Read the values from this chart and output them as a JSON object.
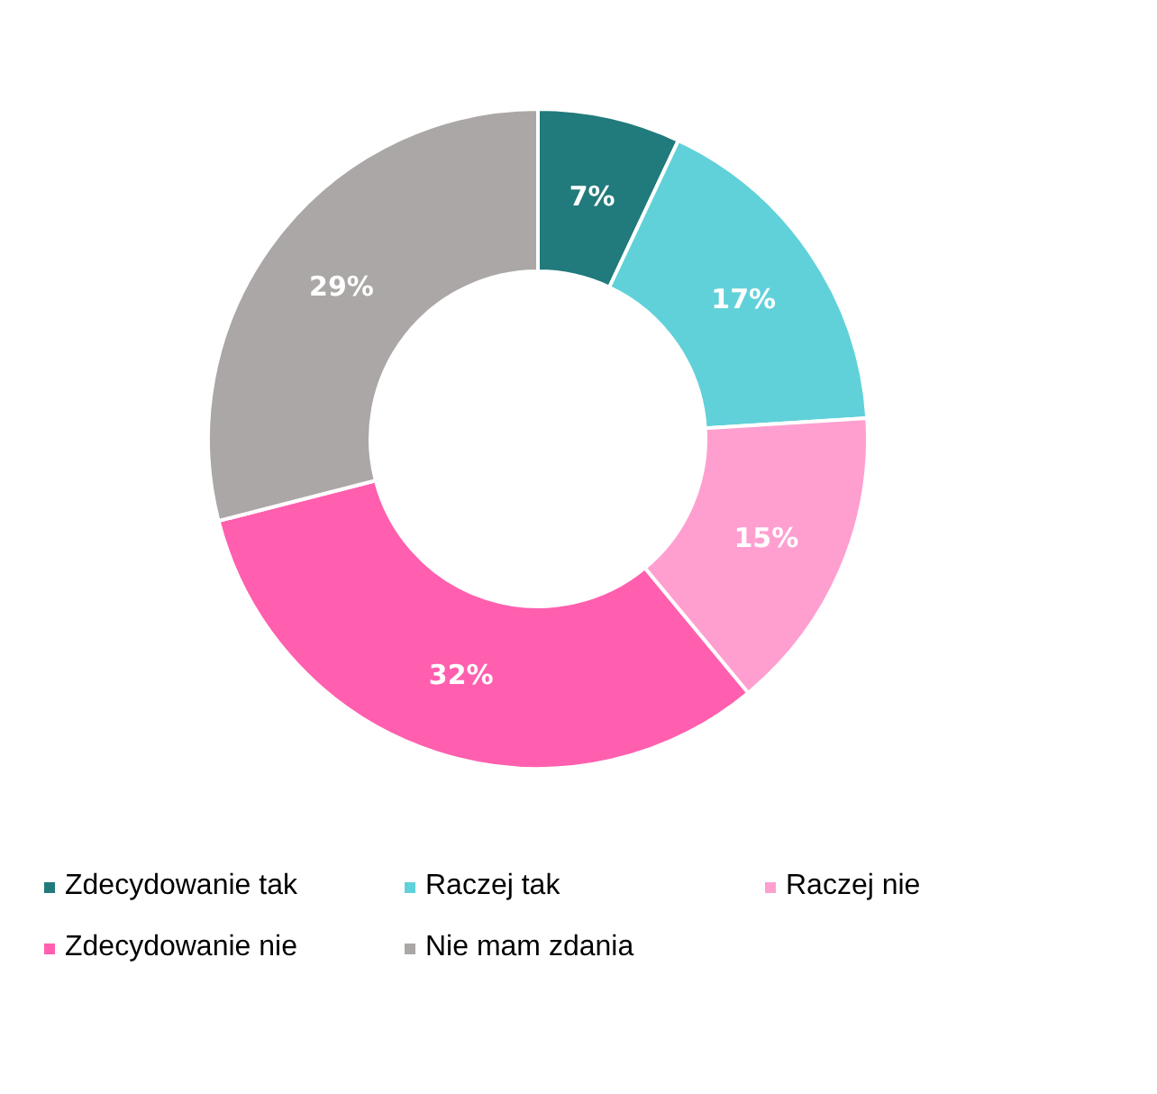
{
  "chart_data": {
    "type": "donut",
    "categories": [
      "Zdecydowanie tak",
      "Raczej tak",
      "Raczej nie",
      "Zdecydowanie nie",
      "Nie mam zdania"
    ],
    "values": [
      7,
      17,
      15,
      32,
      29
    ],
    "colors": [
      "#217a7b",
      "#61d1d9",
      "#ff9fd0",
      "#ff5fae",
      "#aba7a6"
    ],
    "value_labels": [
      "7%",
      "17%",
      "15%",
      "32%",
      "29%"
    ],
    "legend": "bottom"
  }
}
